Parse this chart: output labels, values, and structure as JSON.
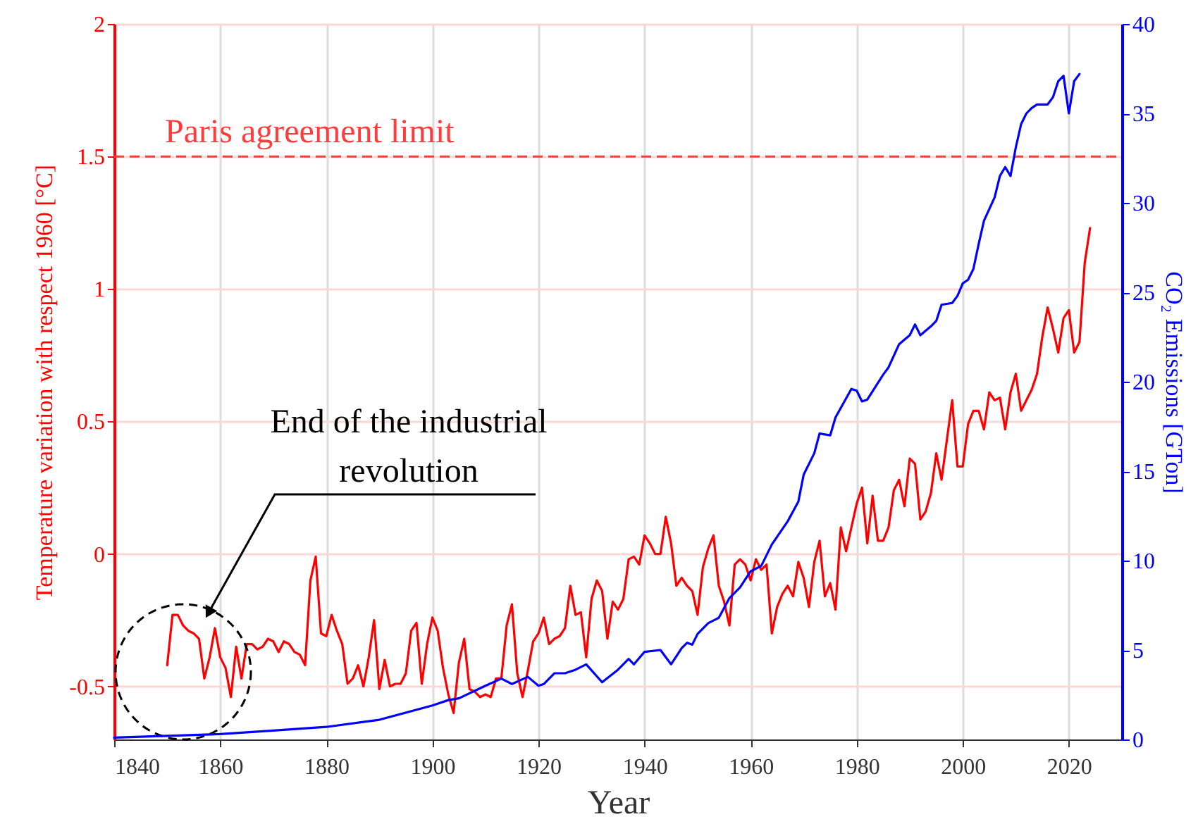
{
  "chart_data": {
    "type": "line",
    "xlabel": "Year",
    "ylabel": "Temperature variation with respect 1960 [°C]",
    "y2label": "CO₂ Emissions [GTon]",
    "xlim": [
      1840,
      2030
    ],
    "xticks": [
      1840,
      1860,
      1880,
      1900,
      1920,
      1940,
      1960,
      1980,
      2000,
      2020
    ],
    "ylim": [
      -0.7,
      2
    ],
    "yticks": [
      -0.5,
      0,
      0.5,
      1,
      1.5,
      2
    ],
    "y2lim": [
      0,
      40
    ],
    "y2ticks": [
      0,
      5,
      10,
      15,
      20,
      25,
      30,
      35,
      40
    ],
    "grid": true,
    "series": [
      {
        "color": "#ff0000",
        "x": [
          1850,
          1851,
          1852,
          1853,
          1854,
          1855,
          1856,
          1857,
          1858,
          1859,
          1860,
          1861,
          1862,
          1863,
          1864,
          1865,
          1866,
          1867,
          1868,
          1869,
          1870,
          1871,
          1872,
          1873,
          1874,
          1875,
          1876,
          1877,
          1878,
          1879,
          1880,
          1881,
          1882,
          1883,
          1884,
          1885,
          1886,
          1887,
          1888,
          1889,
          1890,
          1891,
          1892,
          1893,
          1894,
          1895,
          1896,
          1897,
          1898,
          1899,
          1900,
          1901,
          1902,
          1903,
          1904,
          1905,
          1906,
          1907,
          1908,
          1909,
          1910,
          1911,
          1912,
          1913,
          1914,
          1915,
          1916,
          1917,
          1918,
          1919,
          1920,
          1921,
          1922,
          1923,
          1924,
          1925,
          1926,
          1927,
          1928,
          1929,
          1930,
          1931,
          1932,
          1933,
          1934,
          1935,
          1936,
          1937,
          1938,
          1939,
          1940,
          1941,
          1942,
          1943,
          1944,
          1945,
          1946,
          1947,
          1948,
          1949,
          1950,
          1951,
          1952,
          1953,
          1954,
          1955,
          1956,
          1957,
          1958,
          1959,
          1960,
          1961,
          1962,
          1963,
          1964,
          1965,
          1966,
          1967,
          1968,
          1969,
          1970,
          1971,
          1972,
          1973,
          1974,
          1975,
          1976,
          1977,
          1978,
          1979,
          1980,
          1981,
          1982,
          1983,
          1984,
          1985,
          1986,
          1987,
          1988,
          1989,
          1990,
          1991,
          1992,
          1993,
          1994,
          1995,
          1996,
          1997,
          1998,
          1999,
          2000,
          2001,
          2002,
          2003,
          2004,
          2005,
          2006,
          2007,
          2008,
          2009,
          2010,
          2011,
          2012,
          2013,
          2014,
          2015,
          2016,
          2017,
          2018,
          2019,
          2020,
          2021,
          2022,
          2023,
          2024
        ],
        "values": [
          -0.42,
          -0.23,
          -0.23,
          -0.27,
          -0.29,
          -0.3,
          -0.32,
          -0.47,
          -0.39,
          -0.28,
          -0.39,
          -0.43,
          -0.54,
          -0.35,
          -0.47,
          -0.34,
          -0.34,
          -0.36,
          -0.35,
          -0.32,
          -0.33,
          -0.37,
          -0.33,
          -0.34,
          -0.37,
          -0.38,
          -0.42,
          -0.1,
          -0.01,
          -0.3,
          -0.31,
          -0.23,
          -0.29,
          -0.34,
          -0.49,
          -0.47,
          -0.42,
          -0.5,
          -0.39,
          -0.25,
          -0.51,
          -0.4,
          -0.5,
          -0.49,
          -0.49,
          -0.45,
          -0.29,
          -0.26,
          -0.49,
          -0.34,
          -0.24,
          -0.29,
          -0.43,
          -0.53,
          -0.6,
          -0.41,
          -0.32,
          -0.51,
          -0.52,
          -0.54,
          -0.53,
          -0.54,
          -0.47,
          -0.47,
          -0.27,
          -0.19,
          -0.45,
          -0.54,
          -0.44,
          -0.33,
          -0.3,
          -0.24,
          -0.34,
          -0.32,
          -0.31,
          -0.28,
          -0.12,
          -0.23,
          -0.22,
          -0.39,
          -0.17,
          -0.1,
          -0.14,
          -0.32,
          -0.18,
          -0.21,
          -0.17,
          -0.02,
          -0.01,
          -0.04,
          0.07,
          0.04,
          0.0,
          0.0,
          0.14,
          0.04,
          -0.12,
          -0.09,
          -0.12,
          -0.14,
          -0.23,
          -0.05,
          0.02,
          0.07,
          -0.12,
          -0.18,
          -0.27,
          -0.04,
          -0.02,
          -0.04,
          -0.1,
          -0.02,
          -0.06,
          -0.04,
          -0.3,
          -0.2,
          -0.15,
          -0.12,
          -0.16,
          -0.03,
          -0.09,
          -0.2,
          -0.03,
          0.05,
          -0.16,
          -0.11,
          -0.21,
          0.1,
          0.01,
          0.1,
          0.19,
          0.25,
          0.04,
          0.22,
          0.05,
          0.05,
          0.1,
          0.24,
          0.28,
          0.18,
          0.36,
          0.34,
          0.13,
          0.16,
          0.23,
          0.38,
          0.28,
          0.43,
          0.58,
          0.33,
          0.33,
          0.49,
          0.54,
          0.54,
          0.47,
          0.61,
          0.58,
          0.59,
          0.47,
          0.61,
          0.68,
          0.54,
          0.58,
          0.62,
          0.68,
          0.82,
          0.93,
          0.85,
          0.76,
          0.89,
          0.92,
          0.76,
          0.8,
          1.1,
          1.23
        ]
      },
      {
        "color": "#0000ff",
        "axis": "y2",
        "x": [
          1840,
          1850,
          1860,
          1870,
          1880,
          1890,
          1900,
          1903,
          1905,
          1910,
          1913,
          1915,
          1918,
          1920,
          1921,
          1923,
          1925,
          1927,
          1929,
          1932,
          1935,
          1937,
          1938,
          1940,
          1943,
          1945,
          1947,
          1948,
          1949,
          1950,
          1952,
          1954,
          1956,
          1958,
          1960,
          1962,
          1964,
          1967,
          1969,
          1970,
          1972,
          1973,
          1975,
          1976,
          1979,
          1980,
          1981,
          1982,
          1985,
          1986,
          1988,
          1990,
          1991,
          1992,
          1994,
          1995,
          1996,
          1998,
          1999,
          2000,
          2001,
          2002,
          2003,
          2004,
          2006,
          2007,
          2008,
          2009,
          2010,
          2011,
          2012,
          2013,
          2014,
          2016,
          2017,
          2018,
          2019,
          2020,
          2021,
          2022
        ],
        "values": [
          0.1,
          0.2,
          0.3,
          0.5,
          0.7,
          1.1,
          1.9,
          2.2,
          2.3,
          3.0,
          3.4,
          3.1,
          3.5,
          3.0,
          3.1,
          3.7,
          3.7,
          3.9,
          4.2,
          3.2,
          3.9,
          4.5,
          4.2,
          4.9,
          5.0,
          4.2,
          5.1,
          5.4,
          5.3,
          5.9,
          6.5,
          6.8,
          7.9,
          8.5,
          9.4,
          9.7,
          10.9,
          12.2,
          13.3,
          14.8,
          16.0,
          17.1,
          17.0,
          18.0,
          19.6,
          19.5,
          18.9,
          19.0,
          20.4,
          20.8,
          22.1,
          22.6,
          23.2,
          22.6,
          23.1,
          23.4,
          24.3,
          24.4,
          24.8,
          25.5,
          25.7,
          26.3,
          27.7,
          29.0,
          30.3,
          31.5,
          32.0,
          31.5,
          33.1,
          34.4,
          35.0,
          35.3,
          35.5,
          35.5,
          35.9,
          36.8,
          37.1,
          35.0,
          36.8,
          37.2
        ]
      }
    ],
    "ref_lines": [
      {
        "axis": "y",
        "value": 1.5,
        "label": "Paris agreement limit",
        "color": "#ff3b3b",
        "line_style": "dashed"
      }
    ],
    "annotations": [
      "End of the industrial revolution"
    ]
  }
}
